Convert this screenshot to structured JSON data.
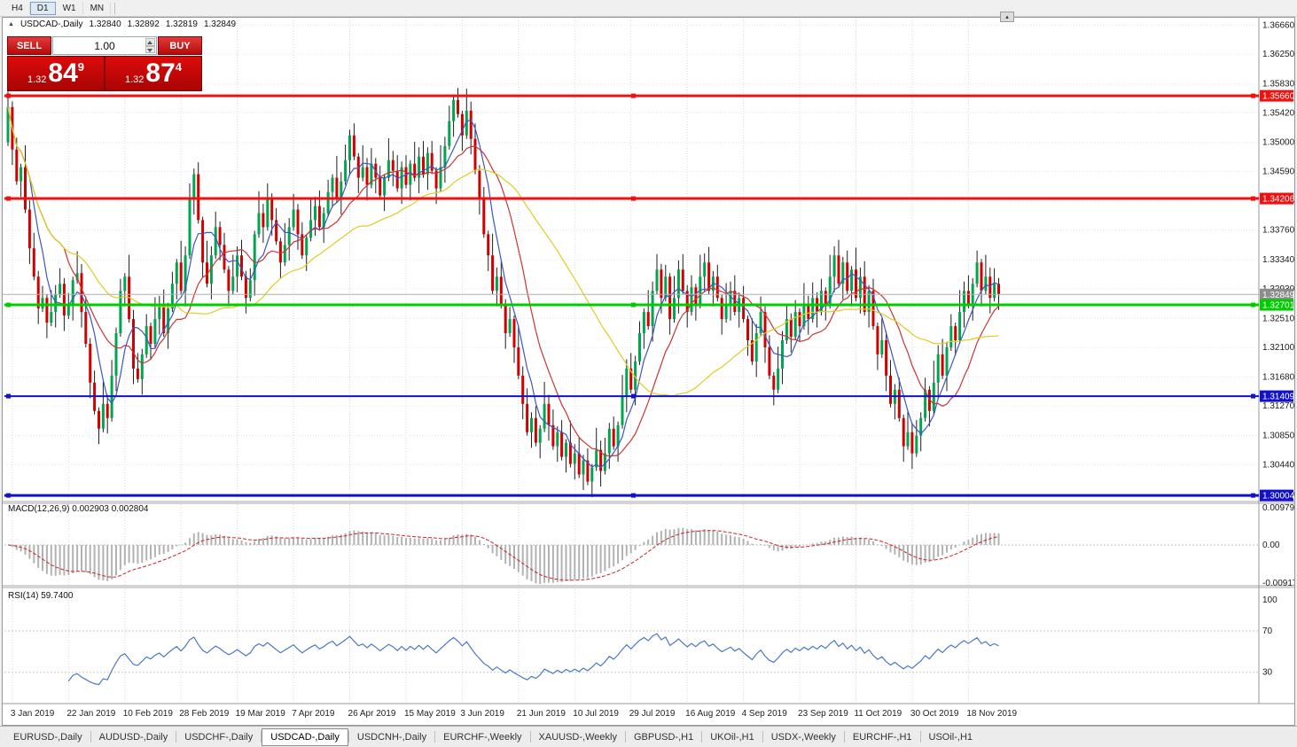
{
  "toolbar": {
    "timeframes": [
      {
        "label": "H4",
        "active": false
      },
      {
        "label": "D1",
        "active": true
      },
      {
        "label": "W1",
        "active": false
      },
      {
        "label": "MN",
        "active": false
      }
    ]
  },
  "window_button": {
    "icon": "▴"
  },
  "header": {
    "icon": "▲",
    "symbol": "USDCAD-,Daily",
    "open": "1.32840",
    "high": "1.32892",
    "low": "1.32819",
    "close": "1.32849"
  },
  "one_click": {
    "sell_label": "SELL",
    "buy_label": "BUY",
    "volume": "1.00",
    "sell_price_small": "1.32",
    "sell_price_big": "84",
    "sell_price_sup": "9",
    "buy_price_small": "1.32",
    "buy_price_big": "87",
    "buy_price_sup": "4"
  },
  "price_axis": {
    "labels": [
      "1.36660",
      "1.36250",
      "1.35830",
      "1.35420",
      "1.35000",
      "1.34590",
      "1.34170",
      "1.33760",
      "1.33340",
      "1.32930",
      "1.32510",
      "1.32100",
      "1.31680",
      "1.31270",
      "1.30850",
      "1.30440",
      "1.30020"
    ]
  },
  "levels": [
    {
      "price": "1.35660",
      "color": "#ee1111",
      "width": 3
    },
    {
      "price": "1.34206",
      "color": "#ee1111",
      "width": 3
    },
    {
      "price": "1.32701",
      "color": "#00cc00",
      "width": 3
    },
    {
      "price": "1.31409",
      "color": "#1111cc",
      "width": 2
    },
    {
      "price": "1.30004",
      "color": "#1111cc",
      "width": 3
    }
  ],
  "current_price": {
    "price": "1.32849",
    "badge_color": "#8c8c8c",
    "line_color": "#b0b0b0"
  },
  "macd_panel": {
    "title": "MACD(12,26,9) 0.002903 0.002804",
    "axis_top": "0.009795",
    "axis_mid": "0.00",
    "axis_bottom": "-0.009178"
  },
  "rsi_panel": {
    "title": "RSI(14) 59.7400",
    "axis_levels": [
      {
        "v": 100,
        "label": "100",
        "dashed": false
      },
      {
        "v": 70,
        "label": "70",
        "dashed": true
      },
      {
        "v": 30,
        "label": "30",
        "dashed": true
      }
    ]
  },
  "chart_data": {
    "type": "candlestick",
    "symbol": "USDCAD-",
    "timeframe": "Daily",
    "y_axis": {
      "max": 1.3674,
      "min": 1.2993
    },
    "first_open": 1.35,
    "ohlc_note": "closes read from chart; open=previous close; wick extents approximated",
    "closes": [
      1.355,
      1.349,
      1.3445,
      1.3465,
      1.3405,
      1.335,
      1.331,
      1.3265,
      1.328,
      1.3245,
      1.326,
      1.3285,
      1.33,
      1.3255,
      1.327,
      1.3305,
      1.3315,
      1.326,
      1.3215,
      1.316,
      1.312,
      1.3095,
      1.313,
      1.311,
      1.317,
      1.323,
      1.329,
      1.331,
      1.325,
      1.318,
      1.3165,
      1.32,
      1.324,
      1.3215,
      1.325,
      1.327,
      1.323,
      1.3265,
      1.33,
      1.333,
      1.329,
      1.334,
      1.342,
      1.3455,
      1.339,
      1.333,
      1.33,
      1.334,
      1.338,
      1.3355,
      1.332,
      1.329,
      1.331,
      1.334,
      1.331,
      1.328,
      1.3305,
      1.337,
      1.34,
      1.338,
      1.342,
      1.339,
      1.336,
      1.333,
      1.3355,
      1.338,
      1.3405,
      1.337,
      1.334,
      1.3365,
      1.339,
      1.341,
      1.338,
      1.34,
      1.343,
      1.345,
      1.342,
      1.3445,
      1.3475,
      1.351,
      1.348,
      1.345,
      1.3465,
      1.344,
      1.347,
      1.345,
      1.3425,
      1.345,
      1.3475,
      1.346,
      1.3435,
      1.3465,
      1.344,
      1.347,
      1.345,
      1.348,
      1.3455,
      1.3485,
      1.346,
      1.3435,
      1.3465,
      1.3495,
      1.353,
      1.356,
      1.354,
      1.351,
      1.3545,
      1.3505,
      1.346,
      1.342,
      1.337,
      1.334,
      1.329,
      1.331,
      1.327,
      1.323,
      1.325,
      1.321,
      1.317,
      1.313,
      1.309,
      1.311,
      1.3075,
      1.3095,
      1.313,
      1.31,
      1.307,
      1.309,
      1.3055,
      1.3075,
      1.3045,
      1.306,
      1.303,
      1.305,
      1.302,
      1.304,
      1.3065,
      1.3035,
      1.306,
      1.3095,
      1.307,
      1.31,
      1.314,
      1.318,
      1.315,
      1.319,
      1.323,
      1.326,
      1.324,
      1.329,
      1.332,
      1.328,
      1.331,
      1.325,
      1.328,
      1.332,
      1.329,
      1.326,
      1.3295,
      1.327,
      1.331,
      1.333,
      1.329,
      1.331,
      1.328,
      1.325,
      1.327,
      1.329,
      1.326,
      1.328,
      1.325,
      1.322,
      1.319,
      1.323,
      1.326,
      1.321,
      1.317,
      1.315,
      1.318,
      1.322,
      1.325,
      1.3225,
      1.326,
      1.324,
      1.327,
      1.325,
      1.328,
      1.326,
      1.329,
      1.327,
      1.331,
      1.334,
      1.33,
      1.333,
      1.329,
      1.332,
      1.328,
      1.331,
      1.326,
      1.329,
      1.324,
      1.32,
      1.322,
      1.317,
      1.313,
      1.315,
      1.311,
      1.307,
      1.309,
      1.306,
      1.3085,
      1.311,
      1.315,
      1.312,
      1.316,
      1.32,
      1.317,
      1.321,
      1.324,
      1.322,
      1.326,
      1.329,
      1.327,
      1.33,
      1.333,
      1.329,
      1.331,
      1.328,
      1.33,
      1.32849
    ],
    "date_ticks": {
      "indices": [
        1,
        14,
        27,
        40,
        53,
        66,
        79,
        92,
        105,
        118,
        131,
        144,
        157,
        170,
        183,
        196,
        209,
        222
      ],
      "labels": [
        "3 Jan 2019",
        "22 Jan 2019",
        "10 Feb 2019",
        "28 Feb 2019",
        "19 Mar 2019",
        "7 Apr 2019",
        "26 Apr 2019",
        "15 May 2019",
        "3 Jun 2019",
        "21 Jun 2019",
        "10 Jul 2019",
        "29 Jul 2019",
        "16 Aug 2019",
        "4 Sep 2019",
        "23 Sep 2019",
        "11 Oct 2019",
        "30 Oct 2019",
        "18 Nov 2019"
      ]
    },
    "indicators": {
      "ma": [
        {
          "period": 6,
          "color": "#3a56c8"
        },
        {
          "period": 14,
          "color": "#cc3333"
        },
        {
          "period": 40,
          "color": "#e0cc20"
        }
      ],
      "macd": {
        "params": "12,26,9",
        "main": "0.002903",
        "signal": "0.002804"
      },
      "rsi": {
        "params": "14",
        "value": "59.7400"
      }
    },
    "colors": {
      "bull": "#00a550",
      "bear": "#d40000",
      "wick": "#1f1f1f",
      "macd_hist": "#b2b2b2",
      "macd_signal": "#cc2222",
      "rsi": "#4a78c8"
    }
  },
  "tabs": [
    {
      "label": "EURUSD-,Daily",
      "active": false
    },
    {
      "label": "AUDUSD-,Daily",
      "active": false
    },
    {
      "label": "USDCHF-,Daily",
      "active": false
    },
    {
      "label": "USDCAD-,Daily",
      "active": true
    },
    {
      "label": "USDCNH-,Daily",
      "active": false
    },
    {
      "label": "EURCHF-,Weekly",
      "active": false
    },
    {
      "label": "XAUUSD-,Weekly",
      "active": false
    },
    {
      "label": "GBPUSD-,H1",
      "active": false
    },
    {
      "label": "UKOil-,H1",
      "active": false
    },
    {
      "label": "USDX-,Weekly",
      "active": false
    },
    {
      "label": "EURCHF-,H1",
      "active": false
    },
    {
      "label": "USOil-,H1",
      "active": false
    }
  ]
}
